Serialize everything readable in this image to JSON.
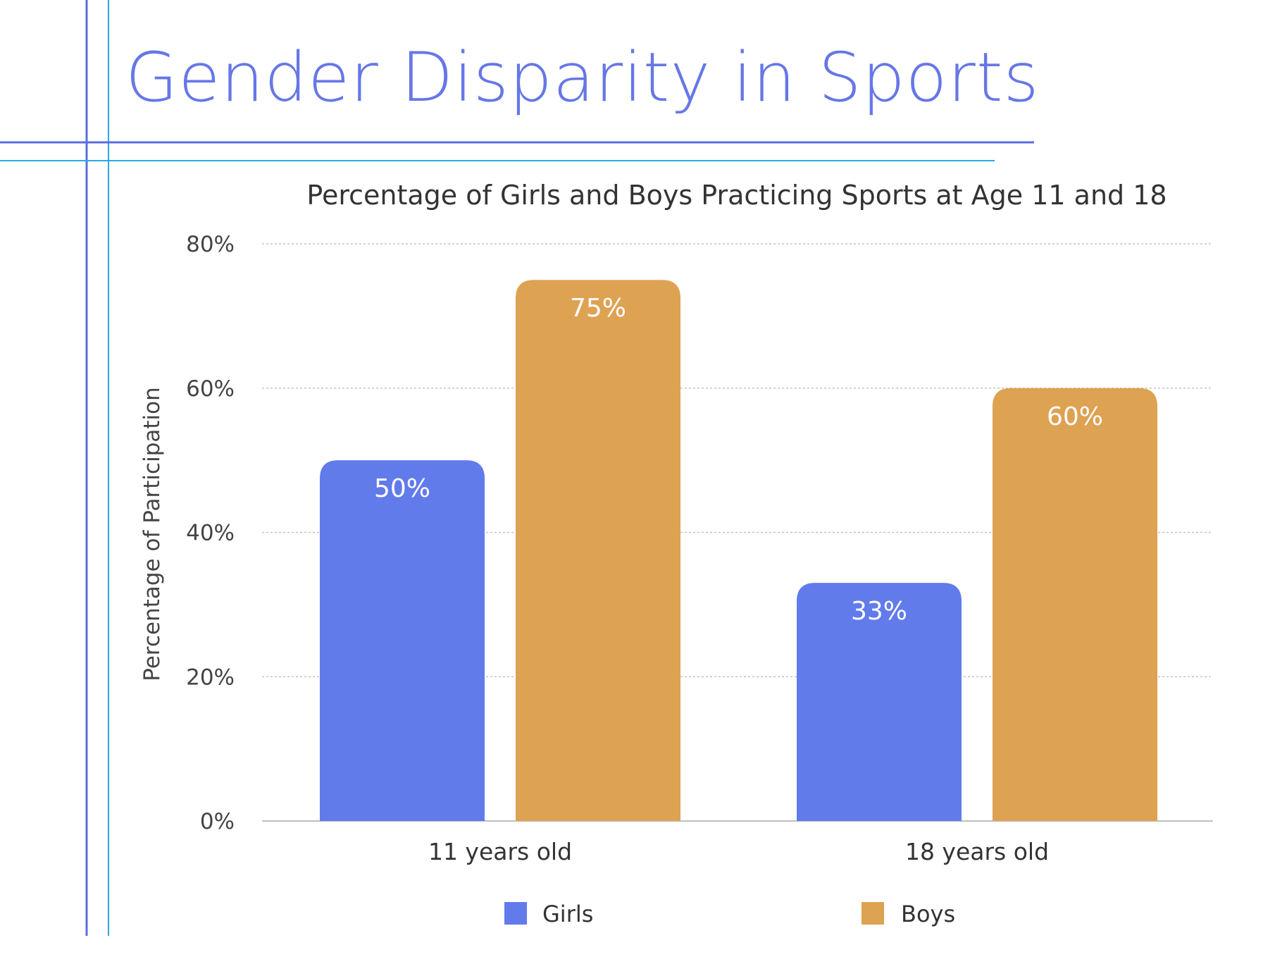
{
  "page": {
    "title": "Gender Disparity in Sports"
  },
  "colors": {
    "accent": "#6677e6",
    "girls": "#627beb",
    "boys": "#dea253",
    "deco_blue": "#5b6ce0",
    "deco_cyan": "#2aa8e6"
  },
  "chart_data": {
    "type": "bar",
    "title": "Percentage of Girls and Boys Practicing Sports at Age 11 and 18",
    "ylabel": "Percentage of Participation",
    "xlabel": "",
    "ylim": [
      0,
      80
    ],
    "yticks": [
      0,
      20,
      40,
      60,
      80
    ],
    "ytick_labels": [
      "0%",
      "20%",
      "40%",
      "60%",
      "80%"
    ],
    "categories": [
      "11 years old",
      "18 years old"
    ],
    "series": [
      {
        "name": "Girls",
        "values": [
          50,
          33
        ],
        "labels": [
          "50%",
          "33%"
        ],
        "color": "#627beb"
      },
      {
        "name": "Boys",
        "values": [
          75,
          60
        ],
        "labels": [
          "75%",
          "60%"
        ],
        "color": "#dea253"
      }
    ],
    "grid": true,
    "legend": "bottom"
  }
}
